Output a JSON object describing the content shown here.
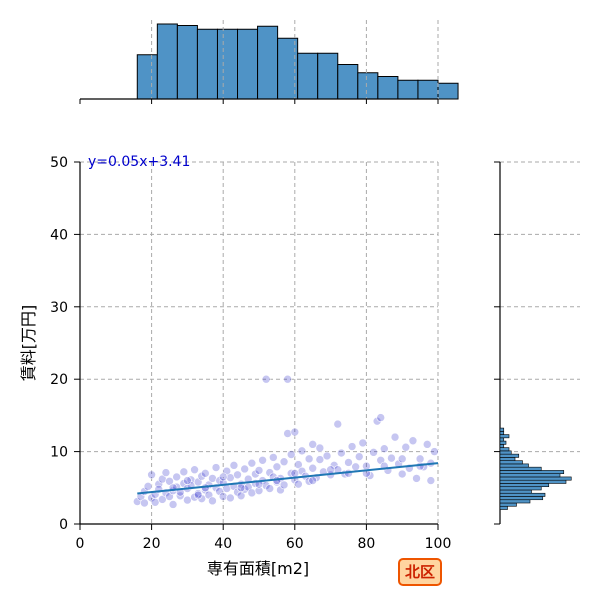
{
  "chart_data": {
    "type": "scatter",
    "xlabel": "専有面積[m2]",
    "ylabel": "賃料[万円]",
    "xlim": [
      0,
      100
    ],
    "ylim": [
      0,
      50
    ],
    "x_ticks": [
      0,
      20,
      40,
      60,
      80,
      100
    ],
    "y_ticks": [
      0,
      10,
      20,
      30,
      40,
      50
    ],
    "grid": true,
    "regression": {
      "label": "y=0.05x+3.41",
      "slope": 0.05,
      "intercept": 3.41,
      "x_range": [
        16,
        100
      ],
      "color": "#1f77b4"
    },
    "point_color": "#3333cc",
    "bar_color": "#4f93c6",
    "x_histogram": {
      "bin_start": 16,
      "bin_width": 5.6,
      "relative_counts": [
        0.59,
        1.0,
        0.98,
        0.93,
        0.93,
        0.93,
        0.97,
        0.81,
        0.61,
        0.61,
        0.46,
        0.35,
        0.3,
        0.25,
        0.25,
        0.21
      ]
    },
    "y_histogram": {
      "bin_start": 2.0,
      "bin_width": 0.45,
      "relative_counts": [
        0.1,
        0.22,
        0.4,
        0.57,
        0.6,
        0.42,
        0.55,
        0.65,
        0.88,
        0.95,
        0.8,
        0.85,
        0.55,
        0.38,
        0.3,
        0.2,
        0.25,
        0.15,
        0.12,
        0.05,
        0.08,
        0.05,
        0.12,
        0.05,
        0.05
      ]
    },
    "points": [
      [
        16,
        3.1
      ],
      [
        17,
        3.8
      ],
      [
        18,
        4.5
      ],
      [
        18,
        2.9
      ],
      [
        19,
        5.2
      ],
      [
        20,
        3.6
      ],
      [
        20,
        6.8
      ],
      [
        21,
        4.1
      ],
      [
        21,
        3.0
      ],
      [
        22,
        5.5
      ],
      [
        22,
        4.8
      ],
      [
        23,
        3.4
      ],
      [
        23,
        6.2
      ],
      [
        24,
        4.3
      ],
      [
        24,
        7.1
      ],
      [
        25,
        3.8
      ],
      [
        25,
        5.9
      ],
      [
        26,
        4.6
      ],
      [
        26,
        2.7
      ],
      [
        27,
        5.1
      ],
      [
        27,
        6.5
      ],
      [
        28,
        3.9
      ],
      [
        28,
        4.4
      ],
      [
        29,
        7.2
      ],
      [
        29,
        5.6
      ],
      [
        30,
        3.3
      ],
      [
        30,
        4.9
      ],
      [
        31,
        6.1
      ],
      [
        31,
        5.3
      ],
      [
        32,
        3.7
      ],
      [
        32,
        7.5
      ],
      [
        33,
        4.2
      ],
      [
        33,
        5.8
      ],
      [
        34,
        6.6
      ],
      [
        34,
        3.5
      ],
      [
        35,
        4.7
      ],
      [
        35,
        7.0
      ],
      [
        36,
        5.4
      ],
      [
        36,
        4.0
      ],
      [
        37,
        6.3
      ],
      [
        37,
        3.2
      ],
      [
        38,
        5.0
      ],
      [
        38,
        7.8
      ],
      [
        39,
        4.5
      ],
      [
        39,
        6.0
      ],
      [
        40,
        3.8
      ],
      [
        40,
        5.7
      ],
      [
        41,
        7.3
      ],
      [
        41,
        4.9
      ],
      [
        42,
        6.4
      ],
      [
        42,
        3.6
      ],
      [
        43,
        5.2
      ],
      [
        43,
        8.1
      ],
      [
        44,
        4.4
      ],
      [
        44,
        6.8
      ],
      [
        45,
        5.5
      ],
      [
        45,
        3.9
      ],
      [
        46,
        7.6
      ],
      [
        46,
        4.8
      ],
      [
        47,
        6.2
      ],
      [
        47,
        5.1
      ],
      [
        48,
        8.4
      ],
      [
        48,
        4.3
      ],
      [
        49,
        6.9
      ],
      [
        49,
        5.6
      ],
      [
        50,
        7.4
      ],
      [
        50,
        4.6
      ],
      [
        51,
        6.0
      ],
      [
        51,
        8.8
      ],
      [
        52,
        5.3
      ],
      [
        52,
        20.0
      ],
      [
        53,
        7.1
      ],
      [
        53,
        4.9
      ],
      [
        54,
        6.5
      ],
      [
        54,
        9.2
      ],
      [
        55,
        5.8
      ],
      [
        55,
        7.9
      ],
      [
        56,
        4.7
      ],
      [
        56,
        6.3
      ],
      [
        57,
        8.6
      ],
      [
        57,
        5.4
      ],
      [
        58,
        12.5
      ],
      [
        58,
        20.0
      ],
      [
        59,
        7.0
      ],
      [
        59,
        9.6
      ],
      [
        60,
        6.1
      ],
      [
        60,
        12.7
      ],
      [
        61,
        5.5
      ],
      [
        61,
        8.2
      ],
      [
        62,
        7.3
      ],
      [
        62,
        10.1
      ],
      [
        63,
        6.6
      ],
      [
        64,
        9.0
      ],
      [
        64,
        5.9
      ],
      [
        65,
        7.7
      ],
      [
        65,
        11.0
      ],
      [
        66,
        6.4
      ],
      [
        67,
        8.9
      ],
      [
        67,
        10.5
      ],
      [
        68,
        7.2
      ],
      [
        69,
        9.4
      ],
      [
        70,
        6.8
      ],
      [
        71,
        8.1
      ],
      [
        72,
        13.8
      ],
      [
        72,
        7.5
      ],
      [
        73,
        9.8
      ],
      [
        74,
        6.9
      ],
      [
        75,
        8.5
      ],
      [
        76,
        10.7
      ],
      [
        77,
        7.9
      ],
      [
        78,
        9.3
      ],
      [
        79,
        11.2
      ],
      [
        80,
        8.0
      ],
      [
        81,
        6.7
      ],
      [
        82,
        9.9
      ],
      [
        83,
        14.2
      ],
      [
        84,
        14.7
      ],
      [
        84,
        8.8
      ],
      [
        85,
        10.4
      ],
      [
        86,
        7.4
      ],
      [
        87,
        9.1
      ],
      [
        88,
        12.0
      ],
      [
        89,
        8.3
      ],
      [
        90,
        6.9
      ],
      [
        91,
        10.6
      ],
      [
        92,
        7.7
      ],
      [
        93,
        11.5
      ],
      [
        94,
        6.3
      ],
      [
        95,
        9.0
      ],
      [
        96,
        7.9
      ],
      [
        97,
        11.0
      ],
      [
        98,
        8.4
      ],
      [
        98,
        6.0
      ],
      [
        99,
        10.0
      ],
      [
        30,
        6.0
      ],
      [
        35,
        5.0
      ],
      [
        40,
        6.5
      ],
      [
        45,
        5.0
      ],
      [
        50,
        5.5
      ],
      [
        55,
        6.0
      ],
      [
        60,
        7.0
      ],
      [
        65,
        6.0
      ],
      [
        70,
        7.5
      ],
      [
        75,
        7.0
      ],
      [
        80,
        7.0
      ],
      [
        85,
        8.0
      ],
      [
        90,
        9.0
      ],
      [
        95,
        8.0
      ],
      [
        26,
        5.0
      ],
      [
        33,
        4.0
      ]
    ]
  },
  "badge": {
    "label": "北区",
    "background": "#ffd5a0",
    "border": "#ee5500",
    "text_color": "#cc2200"
  }
}
